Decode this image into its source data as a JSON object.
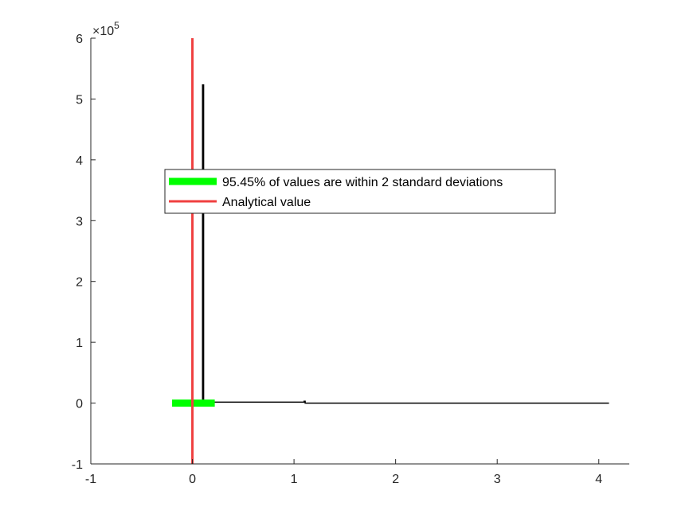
{
  "chart_data": {
    "type": "line",
    "xlim": [
      -1,
      4.3
    ],
    "ylim": [
      -100000,
      600000
    ],
    "x_ticks": [
      -1,
      0,
      1,
      2,
      3,
      4
    ],
    "x_tick_labels": [
      "-1",
      "0",
      "1",
      "2",
      "3",
      "4"
    ],
    "y_ticks": [
      -100000,
      0,
      100000,
      200000,
      300000,
      400000,
      500000,
      600000
    ],
    "y_tick_labels": [
      "-1",
      "0",
      "1",
      "2",
      "3",
      "4",
      "5",
      "6"
    ],
    "y_exponent": {
      "base": "10",
      "power": "5"
    },
    "grid": false,
    "legend_placement": "center-left",
    "series": [
      {
        "kind": "histogram",
        "color": "#000000",
        "points": [
          [
            0.1,
            0
          ],
          [
            0.1,
            523000
          ],
          [
            0.11,
            523000
          ],
          [
            0.11,
            1500
          ],
          [
            1.1,
            1500
          ],
          [
            1.1,
            3000
          ],
          [
            1.11,
            3000
          ],
          [
            1.11,
            0
          ],
          [
            4.1,
            0
          ]
        ]
      },
      {
        "name": "95.45% of values are within 2 standard deviations",
        "kind": "interval",
        "color": "#00ff00",
        "x": [
          -0.2,
          0.22
        ],
        "y": 0
      },
      {
        "name": "Analytical value",
        "kind": "vline",
        "color": "#f04040",
        "x": 0,
        "y": [
          -100000,
          600000
        ]
      }
    ],
    "legend": [
      "95.45% of values are within 2 standard deviations",
      "Analytical value"
    ]
  }
}
